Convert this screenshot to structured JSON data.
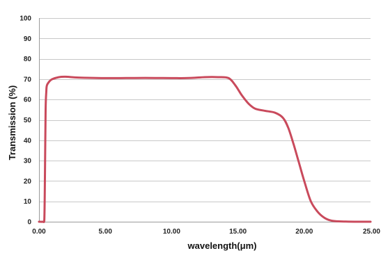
{
  "chart_data": {
    "type": "line",
    "title": "",
    "xlabel": "wavelength(μm)",
    "ylabel": "Transmission (%)",
    "xlim": [
      0,
      25
    ],
    "ylim": [
      0,
      100
    ],
    "x_ticks": [
      0,
      5,
      10,
      15,
      20,
      25
    ],
    "x_tick_labels": [
      "0.00",
      "5.00",
      "10.00",
      "15.00",
      "20.00",
      "25.00"
    ],
    "y_ticks": [
      0,
      10,
      20,
      30,
      40,
      50,
      60,
      70,
      80,
      90,
      100
    ],
    "y_tick_labels": [
      "0",
      "10",
      "20",
      "30",
      "40",
      "50",
      "60",
      "70",
      "80",
      "90",
      "100"
    ],
    "grid": "horizontal",
    "legend": "none",
    "line_color": "#c94a5c",
    "series": [
      {
        "x": [
          0.0,
          0.3,
          0.4,
          0.45,
          0.5,
          0.55,
          0.6,
          0.8,
          1.0,
          1.5,
          2.0,
          3.0,
          5.0,
          8.0,
          11.0,
          12.5,
          13.5,
          14.3,
          14.8,
          15.3,
          15.8,
          16.3,
          17.0,
          17.8,
          18.4,
          18.8,
          19.2,
          19.6,
          20.0,
          20.5,
          21.0,
          21.5,
          22.0,
          22.5,
          23.0,
          24.0,
          25.0
        ],
        "y": [
          0,
          0,
          0.5,
          25,
          55,
          64,
          67,
          69,
          70,
          71,
          71.2,
          70.8,
          70.5,
          70.6,
          70.5,
          71.0,
          71.0,
          70.5,
          67,
          62,
          58,
          55.5,
          54.5,
          53.5,
          51,
          46,
          38,
          29,
          20,
          10,
          5,
          2,
          0.6,
          0.2,
          0.1,
          0,
          0
        ]
      }
    ]
  }
}
